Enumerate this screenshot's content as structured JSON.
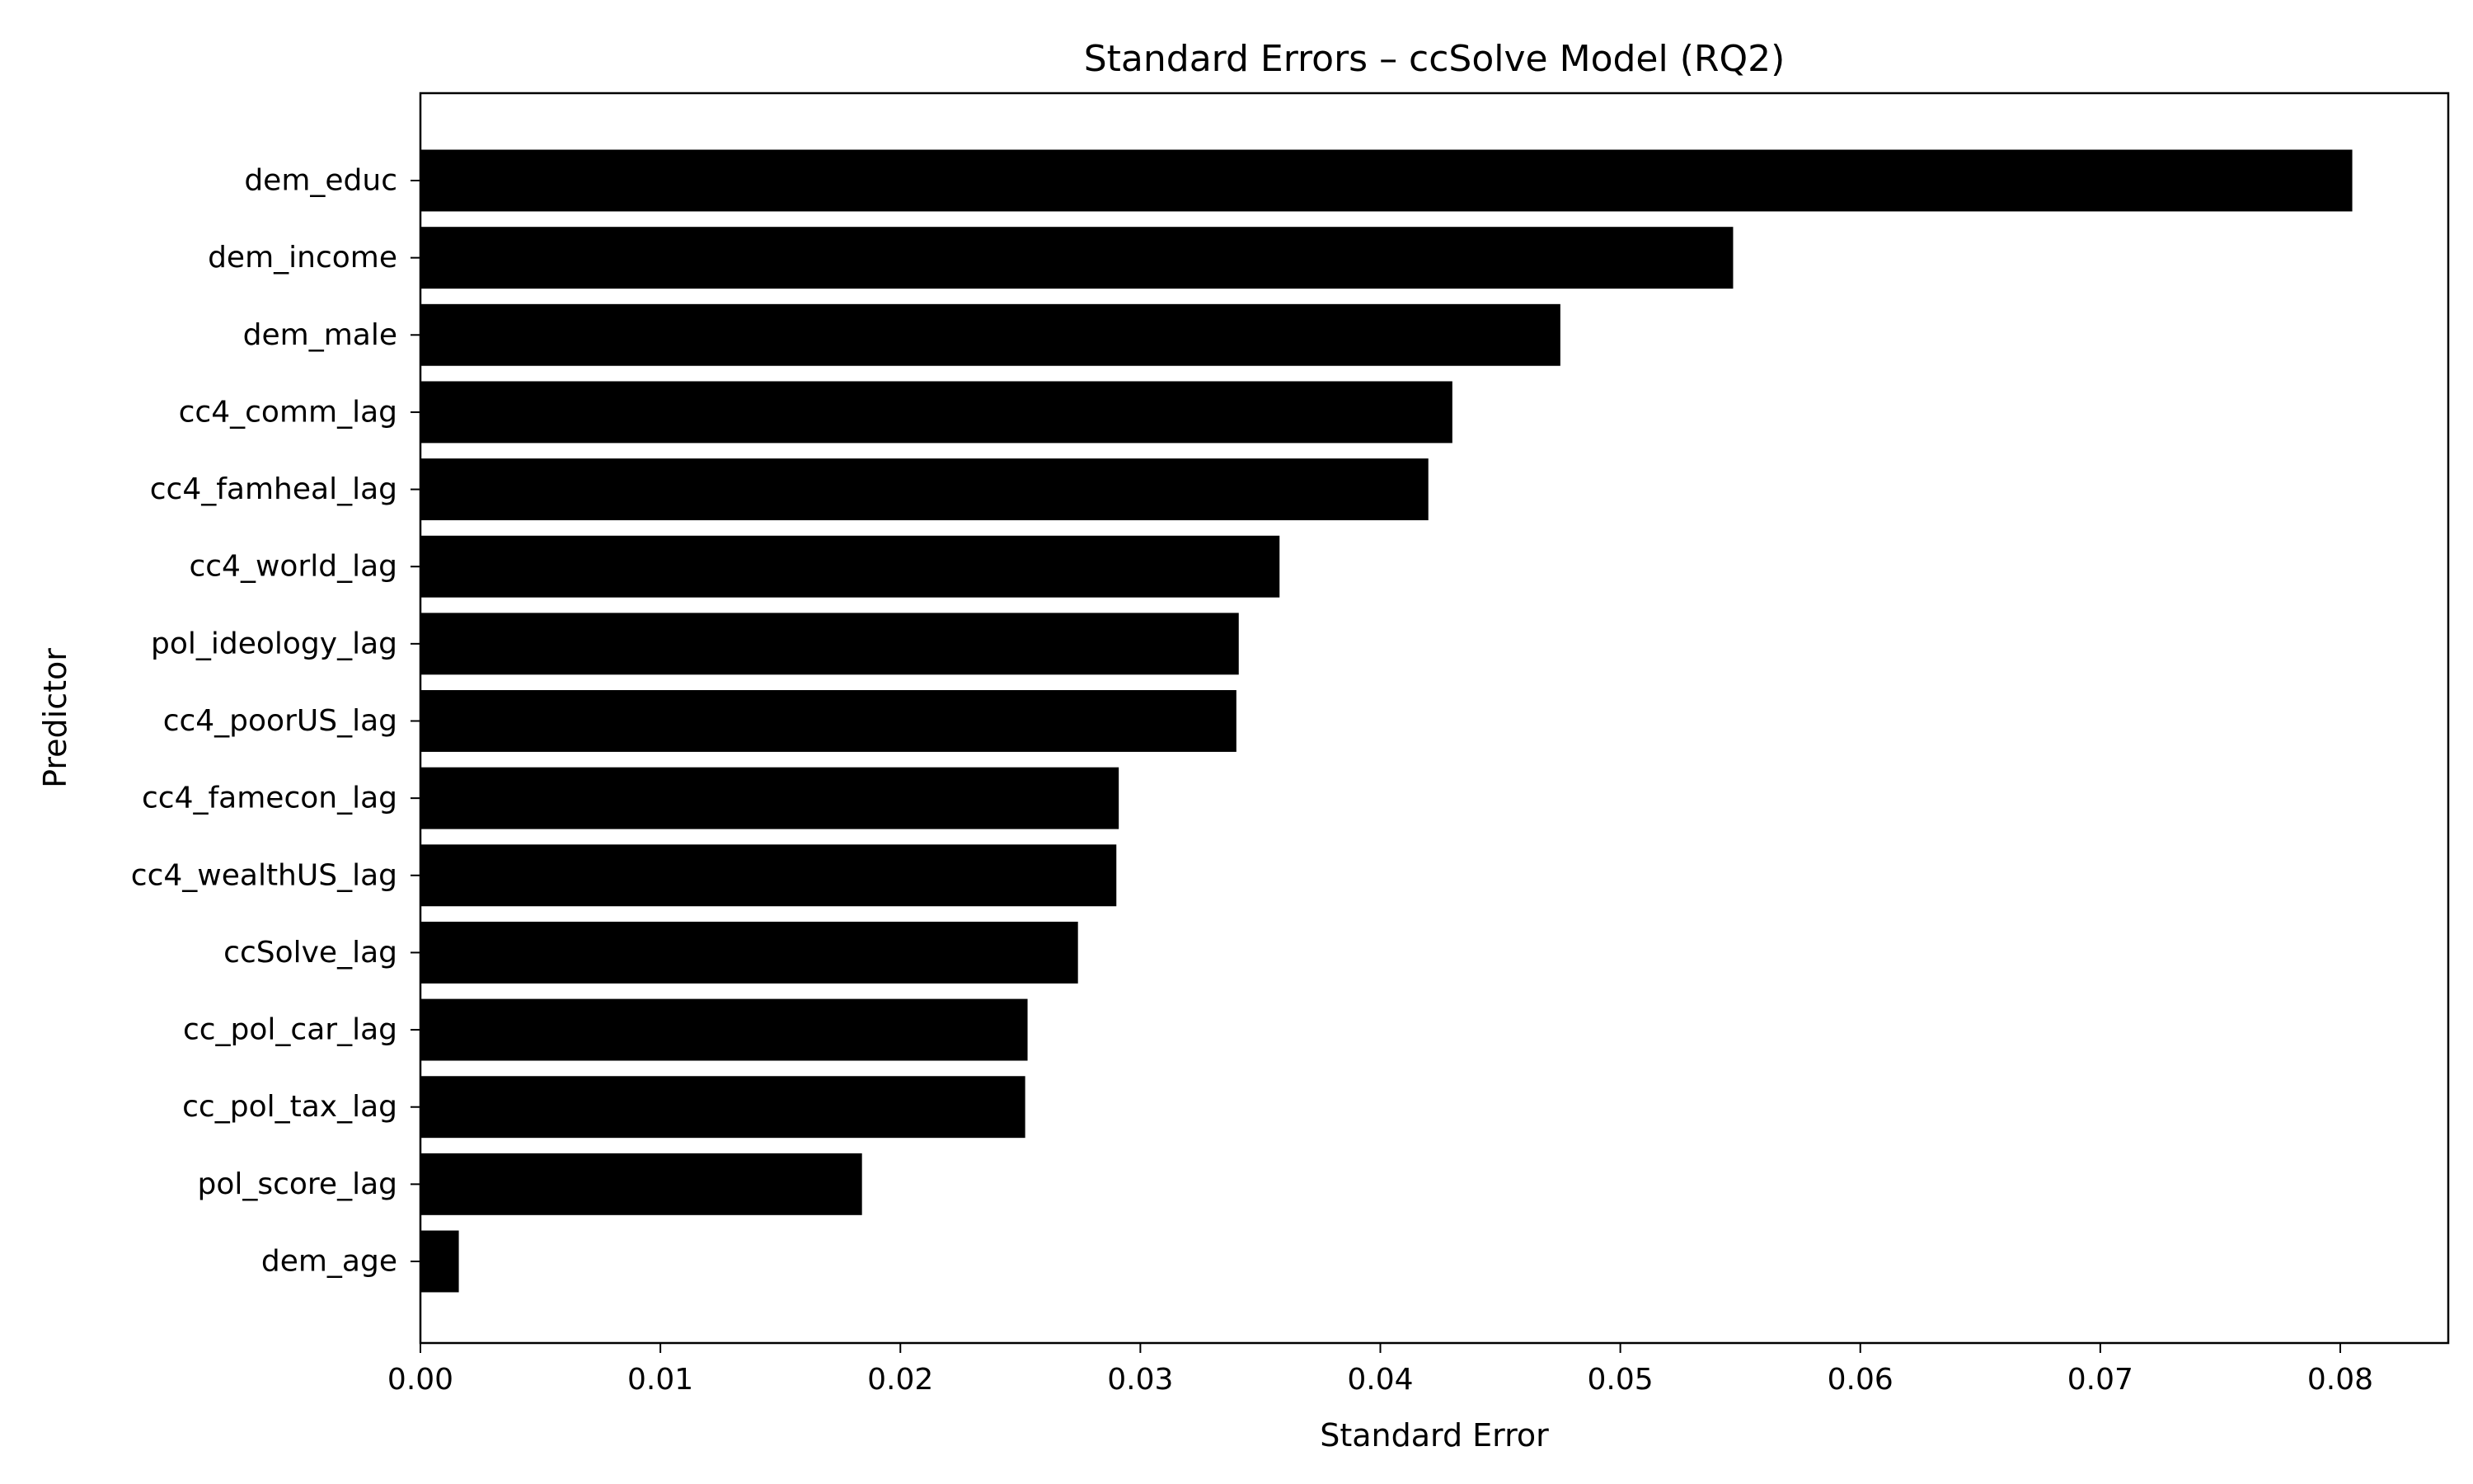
{
  "chart_data": {
    "type": "bar",
    "orientation": "horizontal",
    "title": "Standard Errors – ccSolve Model (RQ2)",
    "xlabel": "Standard Error",
    "ylabel": "Predictor",
    "xlim": [
      0,
      0.0845
    ],
    "xticks": [
      "0.00",
      "0.01",
      "0.02",
      "0.03",
      "0.04",
      "0.05",
      "0.06",
      "0.07",
      "0.08"
    ],
    "categories": [
      "dem_educ",
      "dem_income",
      "dem_male",
      "cc4_comm_lag",
      "cc4_famheal_lag",
      "cc4_world_lag",
      "pol_ideology_lag",
      "cc4_poorUS_lag",
      "cc4_famecon_lag",
      "cc4_wealthUS_lag",
      "ccSolve_lag",
      "cc_pol_car_lag",
      "cc_pol_tax_lag",
      "pol_score_lag",
      "dem_age"
    ],
    "values": [
      0.0805,
      0.0547,
      0.0475,
      0.043,
      0.042,
      0.0358,
      0.0341,
      0.034,
      0.0291,
      0.029,
      0.0274,
      0.0253,
      0.0252,
      0.0184,
      0.0016
    ],
    "bar_color": "#000000",
    "grid": false,
    "legend": "none"
  }
}
